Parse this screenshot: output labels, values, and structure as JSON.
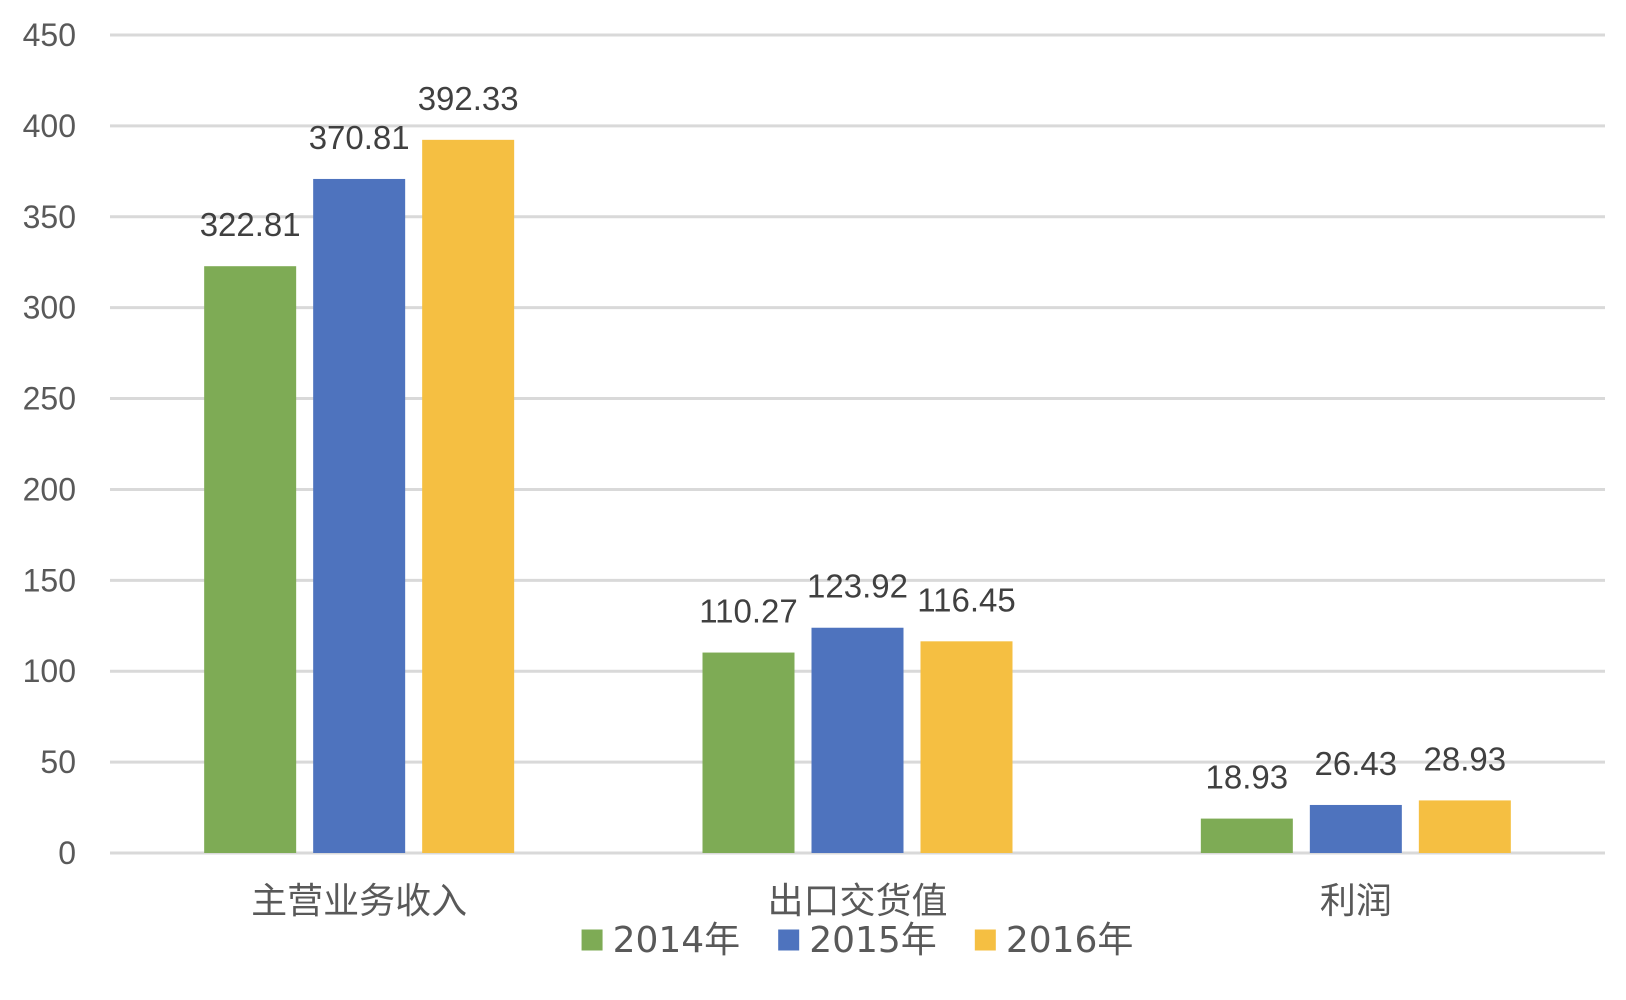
{
  "chart_data": {
    "type": "bar",
    "title": "",
    "xlabel": "",
    "ylabel": "",
    "categories": [
      "主营业务收入",
      "出口交货值",
      "利润"
    ],
    "series": [
      {
        "name": "2014年",
        "color": "#7EAB55",
        "values": [
          322.81,
          110.27,
          18.93
        ],
        "labels": [
          "322.81",
          "110.27",
          "18.93"
        ]
      },
      {
        "name": "2015年",
        "color": "#4E73BE",
        "values": [
          370.81,
          123.92,
          26.43
        ],
        "labels": [
          "370.81",
          "123.92",
          "26.43"
        ]
      },
      {
        "name": "2016年",
        "color": "#F5BF42",
        "values": [
          392.33,
          116.45,
          28.93
        ],
        "labels": [
          "392.33",
          "116.45",
          "28.93"
        ]
      }
    ],
    "ylim": [
      0,
      450
    ],
    "yticks": [
      0,
      50,
      100,
      150,
      200,
      250,
      300,
      350,
      400,
      450
    ],
    "grid": true,
    "legend": "bottom-center"
  }
}
